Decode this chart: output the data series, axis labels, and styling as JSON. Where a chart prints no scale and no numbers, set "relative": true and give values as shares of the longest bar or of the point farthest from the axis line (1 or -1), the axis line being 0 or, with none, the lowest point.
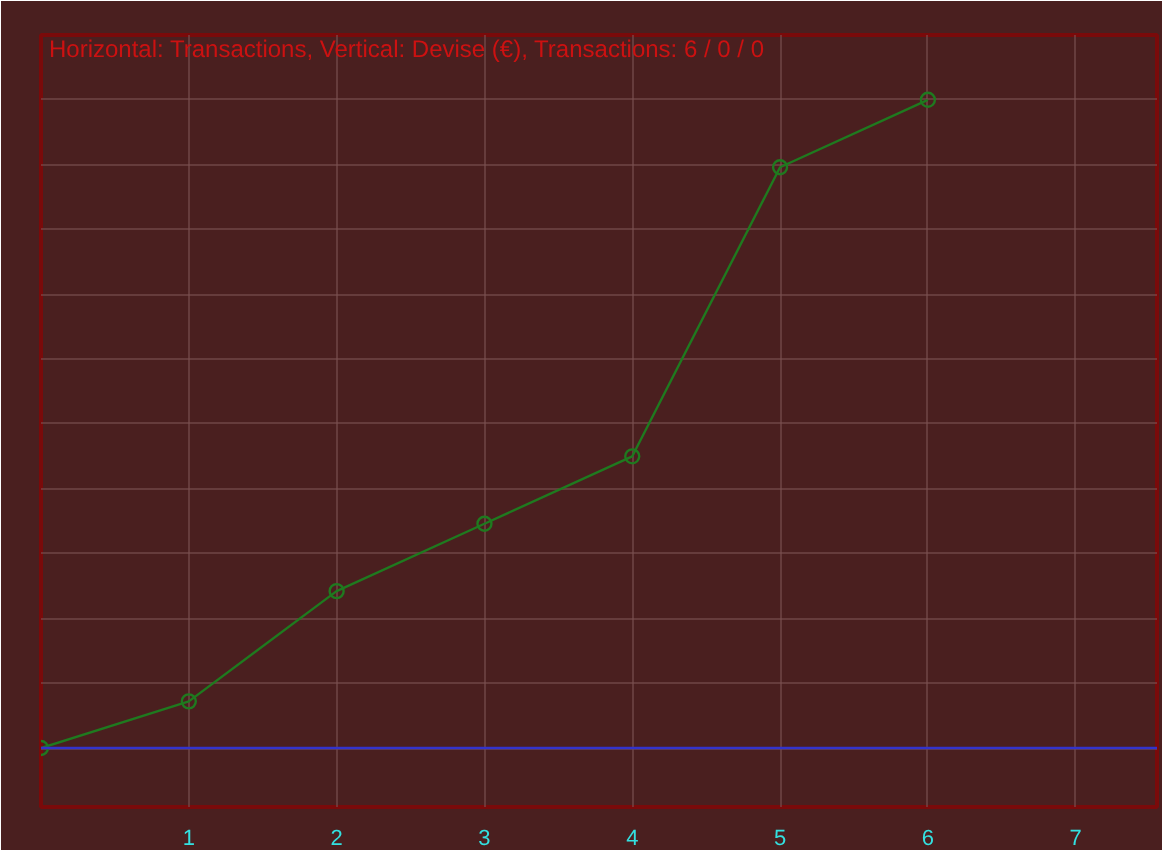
{
  "chart_data": {
    "type": "line",
    "title": "Horizontal: Transactions, Vertical: Devise (€), Transactions: 6 / 0 / 0",
    "x": [
      0,
      1,
      2,
      3,
      4,
      5,
      6
    ],
    "series": [
      {
        "color": "#1f7a1f",
        "values": [
          0,
          0.072,
          0.242,
          0.346,
          0.45,
          0.896,
          1
        ]
      }
    ],
    "relative": true,
    "xlim": [
      0,
      7.55
    ],
    "xticks": [
      1,
      2,
      3,
      4,
      5,
      6,
      7
    ],
    "ref_lines": [
      {
        "axis": "y",
        "value": 0,
        "color": "#3333cc"
      }
    ],
    "grid": true,
    "marker": "circle",
    "line_style": "solid"
  }
}
